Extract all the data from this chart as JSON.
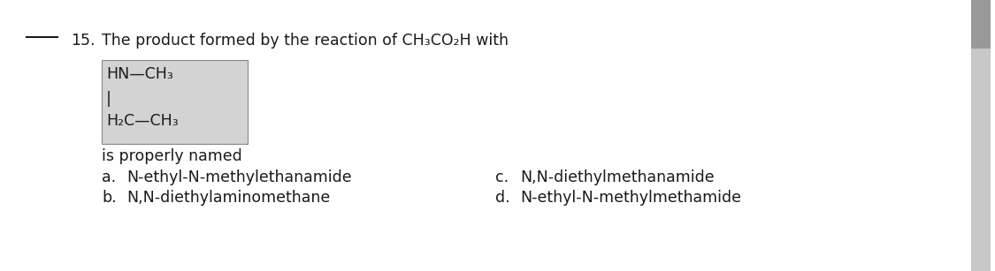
{
  "bg_color": "#ffffff",
  "question_number": "15.",
  "question_text": "The product formed by the reaction of CH₃CO₂H with",
  "structure_line1": "HN—CH₃",
  "structure_line2": "|",
  "structure_line3": "H₂C—CH₃",
  "struct_box_facecolor": "#d3d3d3",
  "struct_box_edgecolor": "#888888",
  "is_properly_named": "is properly named",
  "options": [
    [
      "a.",
      "N-ethyl-N-methylethanamide"
    ],
    [
      "b.",
      "N,N-diethylaminomethane"
    ],
    [
      "c.",
      "N,N-diethylmethanamide"
    ],
    [
      "d.",
      "N-ethyl-N-methylmethamide"
    ]
  ],
  "text_color": "#1a1a1a",
  "font_size": 12.5,
  "figsize": [
    11.25,
    3.07
  ],
  "dpi": 100,
  "scrollbar_bg": "#c8c8c8",
  "scrollbar_thumb": "#999999"
}
